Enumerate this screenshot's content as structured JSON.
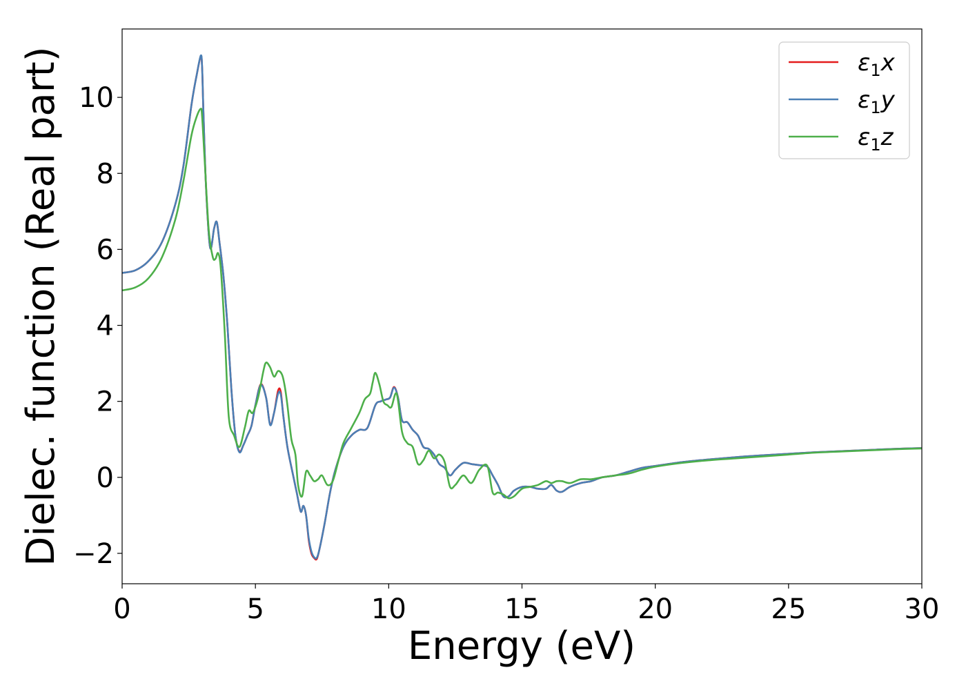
{
  "chart_data": {
    "type": "line",
    "title": "",
    "xlabel": "Energy (eV)",
    "ylabel": "Dielec. function (Real part)",
    "xlim": [
      0,
      30
    ],
    "ylim": [
      -2.8,
      11.8
    ],
    "xticks": [
      0,
      5,
      10,
      15,
      20,
      25,
      30
    ],
    "yticks": [
      -2,
      0,
      2,
      4,
      6,
      8,
      10
    ],
    "ytick_labels": [
      "−2",
      "0",
      "2",
      "4",
      "6",
      "8",
      "10"
    ],
    "grid": false,
    "legend_position": "top-right",
    "series": [
      {
        "name": "ε1x",
        "color": "#e41a1c",
        "x": [
          0,
          0.5,
          1,
          1.5,
          2,
          2.3,
          2.6,
          2.8,
          2.95,
          3.0,
          3.05,
          3.15,
          3.3,
          3.45,
          3.55,
          3.65,
          3.8,
          3.95,
          4.1,
          4.25,
          4.4,
          4.55,
          4.7,
          4.85,
          5.0,
          5.2,
          5.4,
          5.55,
          5.7,
          5.85,
          5.95,
          6.05,
          6.2,
          6.4,
          6.55,
          6.7,
          6.8,
          6.9,
          7.0,
          7.1,
          7.2,
          7.3,
          7.4,
          7.6,
          7.8,
          8.0,
          8.3,
          8.6,
          8.9,
          9.2,
          9.5,
          9.7,
          9.9,
          10.05,
          10.2,
          10.35,
          10.5,
          10.7,
          10.9,
          11.1,
          11.3,
          11.5,
          11.7,
          11.9,
          12.1,
          12.3,
          12.5,
          12.8,
          13.1,
          13.4,
          13.7,
          13.9,
          14.1,
          14.3,
          14.5,
          14.7,
          15.0,
          15.3,
          15.6,
          15.9,
          16.1,
          16.3,
          16.5,
          16.8,
          17.2,
          17.6,
          18.0,
          18.5,
          19.0,
          19.5,
          20.0,
          21.0,
          22.0,
          23.0,
          24.0,
          25.0,
          26.0,
          27.0,
          28.0,
          29.0,
          30.0
        ],
        "y": [
          5.38,
          5.45,
          5.7,
          6.2,
          7.2,
          8.2,
          9.8,
          10.6,
          11.08,
          10.8,
          9.6,
          7.6,
          6.05,
          6.55,
          6.72,
          6.2,
          5.3,
          4.0,
          2.3,
          1.1,
          0.68,
          0.85,
          1.1,
          1.35,
          1.9,
          2.45,
          2.1,
          1.4,
          1.7,
          2.28,
          2.25,
          1.6,
          0.8,
          0.1,
          -0.4,
          -0.9,
          -0.75,
          -1.0,
          -1.65,
          -2.0,
          -2.12,
          -2.15,
          -1.9,
          -1.2,
          -0.4,
          0.2,
          0.8,
          1.1,
          1.25,
          1.3,
          1.9,
          2.0,
          2.05,
          2.1,
          2.38,
          2.1,
          1.5,
          1.45,
          1.25,
          1.1,
          0.8,
          0.75,
          0.6,
          0.35,
          0.25,
          0.05,
          0.2,
          0.38,
          0.35,
          0.32,
          0.28,
          0.05,
          -0.2,
          -0.5,
          -0.5,
          -0.35,
          -0.25,
          -0.25,
          -0.3,
          -0.3,
          -0.2,
          -0.35,
          -0.38,
          -0.25,
          -0.15,
          -0.1,
          0.0,
          0.05,
          0.15,
          0.25,
          0.3,
          0.4,
          0.47,
          0.53,
          0.58,
          0.62,
          0.66,
          0.69,
          0.72,
          0.75,
          0.77
        ]
      },
      {
        "name": "ε1y",
        "color": "#4a7fb5",
        "x": [
          0,
          0.5,
          1,
          1.5,
          2,
          2.3,
          2.6,
          2.8,
          2.95,
          3.0,
          3.05,
          3.15,
          3.3,
          3.45,
          3.55,
          3.65,
          3.8,
          3.95,
          4.1,
          4.25,
          4.4,
          4.55,
          4.7,
          4.85,
          5.0,
          5.2,
          5.4,
          5.55,
          5.7,
          5.85,
          5.95,
          6.05,
          6.2,
          6.4,
          6.55,
          6.7,
          6.8,
          6.9,
          7.0,
          7.1,
          7.2,
          7.3,
          7.4,
          7.6,
          7.8,
          8.0,
          8.3,
          8.6,
          8.9,
          9.2,
          9.5,
          9.7,
          9.9,
          10.05,
          10.2,
          10.35,
          10.5,
          10.7,
          10.9,
          11.1,
          11.3,
          11.5,
          11.7,
          11.9,
          12.1,
          12.3,
          12.5,
          12.8,
          13.1,
          13.4,
          13.7,
          13.9,
          14.1,
          14.3,
          14.5,
          14.7,
          15.0,
          15.3,
          15.6,
          15.9,
          16.1,
          16.3,
          16.5,
          16.8,
          17.2,
          17.6,
          18.0,
          18.5,
          19.0,
          19.5,
          20.0,
          21.0,
          22.0,
          23.0,
          24.0,
          25.0,
          26.0,
          27.0,
          28.0,
          29.0,
          30.0
        ],
        "y": [
          5.38,
          5.45,
          5.7,
          6.2,
          7.2,
          8.2,
          9.8,
          10.6,
          11.1,
          10.8,
          9.6,
          7.6,
          6.05,
          6.55,
          6.72,
          6.2,
          5.3,
          4.0,
          2.3,
          1.1,
          0.66,
          0.85,
          1.1,
          1.35,
          1.9,
          2.43,
          2.1,
          1.38,
          1.7,
          2.2,
          2.18,
          1.6,
          0.8,
          0.1,
          -0.4,
          -0.9,
          -0.75,
          -1.0,
          -1.6,
          -1.95,
          -2.1,
          -2.12,
          -1.9,
          -1.2,
          -0.4,
          0.2,
          0.8,
          1.1,
          1.25,
          1.3,
          1.9,
          2.0,
          2.05,
          2.1,
          2.36,
          2.1,
          1.5,
          1.45,
          1.25,
          1.1,
          0.8,
          0.75,
          0.6,
          0.35,
          0.25,
          0.05,
          0.2,
          0.38,
          0.35,
          0.32,
          0.28,
          0.05,
          -0.2,
          -0.5,
          -0.5,
          -0.35,
          -0.25,
          -0.25,
          -0.3,
          -0.3,
          -0.2,
          -0.35,
          -0.38,
          -0.25,
          -0.15,
          -0.1,
          0.0,
          0.05,
          0.15,
          0.25,
          0.3,
          0.4,
          0.47,
          0.53,
          0.58,
          0.62,
          0.66,
          0.69,
          0.72,
          0.75,
          0.77
        ]
      },
      {
        "name": "ε1z",
        "color": "#4daf4a",
        "x": [
          0,
          0.5,
          1,
          1.5,
          2,
          2.3,
          2.6,
          2.8,
          2.95,
          3.0,
          3.1,
          3.25,
          3.4,
          3.5,
          3.6,
          3.7,
          3.85,
          4.0,
          4.2,
          4.4,
          4.6,
          4.75,
          4.9,
          5.1,
          5.3,
          5.4,
          5.55,
          5.7,
          5.85,
          6.0,
          6.1,
          6.2,
          6.35,
          6.5,
          6.6,
          6.75,
          6.9,
          7.05,
          7.2,
          7.35,
          7.5,
          7.7,
          7.9,
          8.1,
          8.3,
          8.6,
          8.9,
          9.1,
          9.3,
          9.4,
          9.5,
          9.65,
          9.8,
          9.95,
          10.1,
          10.3,
          10.5,
          10.7,
          10.9,
          11.1,
          11.3,
          11.5,
          11.7,
          11.9,
          12.1,
          12.3,
          12.5,
          12.8,
          13.1,
          13.4,
          13.7,
          13.9,
          14.1,
          14.3,
          14.5,
          14.7,
          15.0,
          15.3,
          15.6,
          15.9,
          16.1,
          16.3,
          16.5,
          16.8,
          17.2,
          17.6,
          18.0,
          18.5,
          19.0,
          19.5,
          20.0,
          21.0,
          22.0,
          23.0,
          24.0,
          25.0,
          26.0,
          27.0,
          28.0,
          29.0,
          30.0
        ],
        "y": [
          4.92,
          5.0,
          5.25,
          5.8,
          6.8,
          7.8,
          9.0,
          9.5,
          9.7,
          9.5,
          8.3,
          6.5,
          5.8,
          5.75,
          5.9,
          5.5,
          3.8,
          1.6,
          1.1,
          0.8,
          1.3,
          1.75,
          1.7,
          2.1,
          2.8,
          3.02,
          2.9,
          2.65,
          2.8,
          2.7,
          2.4,
          1.9,
          1.0,
          0.6,
          -0.2,
          -0.5,
          0.15,
          0.05,
          -0.1,
          -0.05,
          0.05,
          -0.2,
          -0.1,
          0.4,
          0.9,
          1.3,
          1.7,
          2.05,
          2.2,
          2.5,
          2.75,
          2.45,
          2.0,
          1.9,
          1.85,
          2.2,
          1.2,
          0.9,
          0.8,
          0.35,
          0.45,
          0.7,
          0.5,
          0.6,
          0.4,
          -0.25,
          -0.2,
          0.05,
          -0.15,
          0.2,
          0.3,
          -0.4,
          -0.4,
          -0.45,
          -0.55,
          -0.5,
          -0.3,
          -0.25,
          -0.2,
          -0.1,
          -0.15,
          -0.1,
          -0.1,
          -0.15,
          -0.05,
          -0.05,
          0.0,
          0.05,
          0.1,
          0.2,
          0.28,
          0.38,
          0.45,
          0.5,
          0.55,
          0.6,
          0.65,
          0.68,
          0.71,
          0.74,
          0.76
        ]
      }
    ]
  },
  "legend": {
    "items": [
      {
        "label": "ε1x",
        "symbol": "ε",
        "sub": "1",
        "var": "x",
        "color": "#e41a1c"
      },
      {
        "label": "ε1y",
        "symbol": "ε",
        "sub": "1",
        "var": "y",
        "color": "#4a7fb5"
      },
      {
        "label": "ε1z",
        "symbol": "ε",
        "sub": "1",
        "var": "z",
        "color": "#4daf4a"
      }
    ]
  }
}
